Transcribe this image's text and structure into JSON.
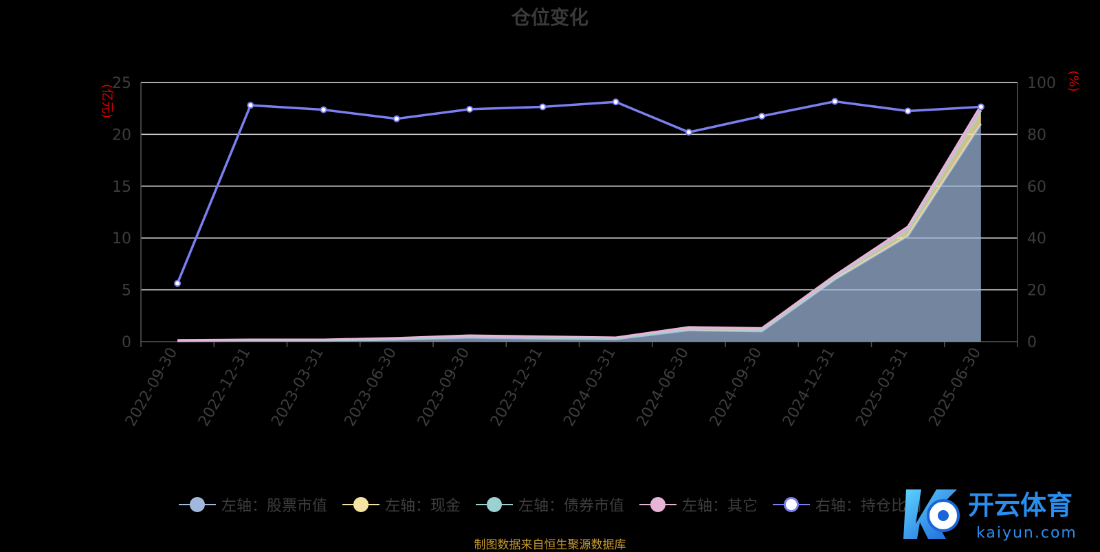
{
  "chart_data": {
    "type": "area",
    "title": "仓位变化",
    "left_axis_unit": "(亿元)",
    "right_axis_unit": "(%)",
    "left_ylim": [
      0,
      25
    ],
    "left_ticks": [
      "0",
      "5",
      "10",
      "15",
      "20",
      "25"
    ],
    "right_ylim": [
      0,
      100
    ],
    "right_ticks": [
      "0",
      "20",
      "40",
      "60",
      "80",
      "100"
    ],
    "grid": true,
    "legend_position": "bottom",
    "categories": [
      "2022-09-30",
      "2022-12-31",
      "2023-03-31",
      "2023-06-30",
      "2023-09-30",
      "2023-12-31",
      "2024-03-31",
      "2024-06-30",
      "2024-09-30",
      "2024-12-31",
      "2025-03-31",
      "2025-06-30"
    ],
    "series": [
      {
        "name": "左轴：股票市值",
        "axis": "left",
        "stack": true,
        "color": "#a1b8de",
        "values": [
          0.05,
          0.1,
          0.1,
          0.2,
          0.4,
          0.3,
          0.25,
          1.1,
          1.0,
          6.0,
          10.2,
          21.0
        ]
      },
      {
        "name": "左轴：现金",
        "axis": "left",
        "stack": true,
        "color": "#f5e3a3",
        "values": [
          0.05,
          0.05,
          0.05,
          0.05,
          0.1,
          0.1,
          0.05,
          0.15,
          0.15,
          0.2,
          0.6,
          1.3
        ]
      },
      {
        "name": "左轴：债券市值",
        "axis": "left",
        "stack": true,
        "color": "#9bd1d1",
        "values": [
          0,
          0,
          0,
          0,
          0,
          0,
          0,
          0,
          0,
          0,
          0,
          0
        ]
      },
      {
        "name": "左轴：其它",
        "axis": "left",
        "stack": true,
        "color": "#e8b4d6",
        "values": [
          0.05,
          0.05,
          0.05,
          0.1,
          0.1,
          0.1,
          0.1,
          0.15,
          0.15,
          0.2,
          0.3,
          0.5
        ]
      },
      {
        "name": "右轴：持仓比例",
        "axis": "right",
        "stack": false,
        "color": "#7b7ff0",
        "values": [
          22.5,
          91.2,
          89.5,
          86.0,
          89.7,
          90.6,
          92.5,
          80.8,
          87.0,
          92.7,
          89.0,
          90.6
        ]
      }
    ],
    "source_note": "制图数据来自恒生聚源数据库"
  },
  "watermark": {
    "text": "开云体育",
    "domain": "kaiyun.com"
  }
}
